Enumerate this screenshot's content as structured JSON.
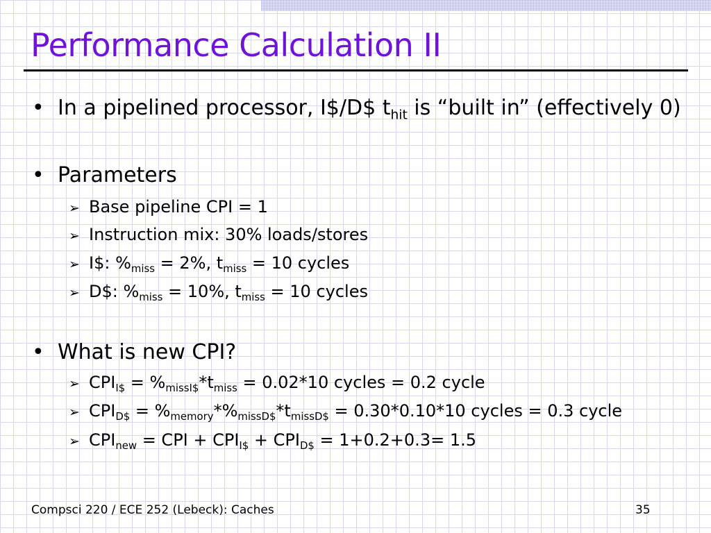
{
  "title": "Performance Calculation II",
  "bullet_glyph": "•",
  "arrow_glyph": "➢",
  "bullets": {
    "b1": {
      "pre": "In a pipelined processor, I$/D$ t",
      "sub": "hit",
      "post": " is “built in” (effectively 0)"
    },
    "b2": {
      "text": "Parameters"
    },
    "b3": {
      "text": "What is new CPI?"
    }
  },
  "params": {
    "p1": {
      "text": "Base pipeline CPI = 1"
    },
    "p2": {
      "text": "Instruction mix: 30% loads/stores"
    },
    "p3": {
      "a": "I$: %",
      "s1": "miss",
      "b": " = 2%, t",
      "s2": "miss",
      "c": " = 10 cycles"
    },
    "p4": {
      "a": "D$: %",
      "s1": "miss",
      "b": " = 10%, t",
      "s2": "miss",
      "c": " = 10 cycles"
    }
  },
  "calc": {
    "c1": {
      "a": "CPI",
      "s1": "I$",
      "b": " = %",
      "s2": "missI$",
      "c": "*t",
      "s3": "miss",
      "d": " = 0.02*10 cycles = 0.2 cycle"
    },
    "c2": {
      "a": "CPI",
      "s1": "D$",
      "b": " = %",
      "s2": "memory",
      "c": "*%",
      "s3": "missD$",
      "d": "*t",
      "s4": "missD$",
      "e": " = 0.30*0.10*10 cycles = 0.3 cycle"
    },
    "c3": {
      "a": "CPI",
      "s1": "new",
      "b": " = CPI + CPI",
      "s2": "I$",
      "c": " + CPI",
      "s3": "D$",
      "d": " = 1+0.2+0.3= 1.5"
    }
  },
  "footer": {
    "course": "Compsci 220 / ECE 252 (Lebeck): Caches",
    "page": "35"
  }
}
